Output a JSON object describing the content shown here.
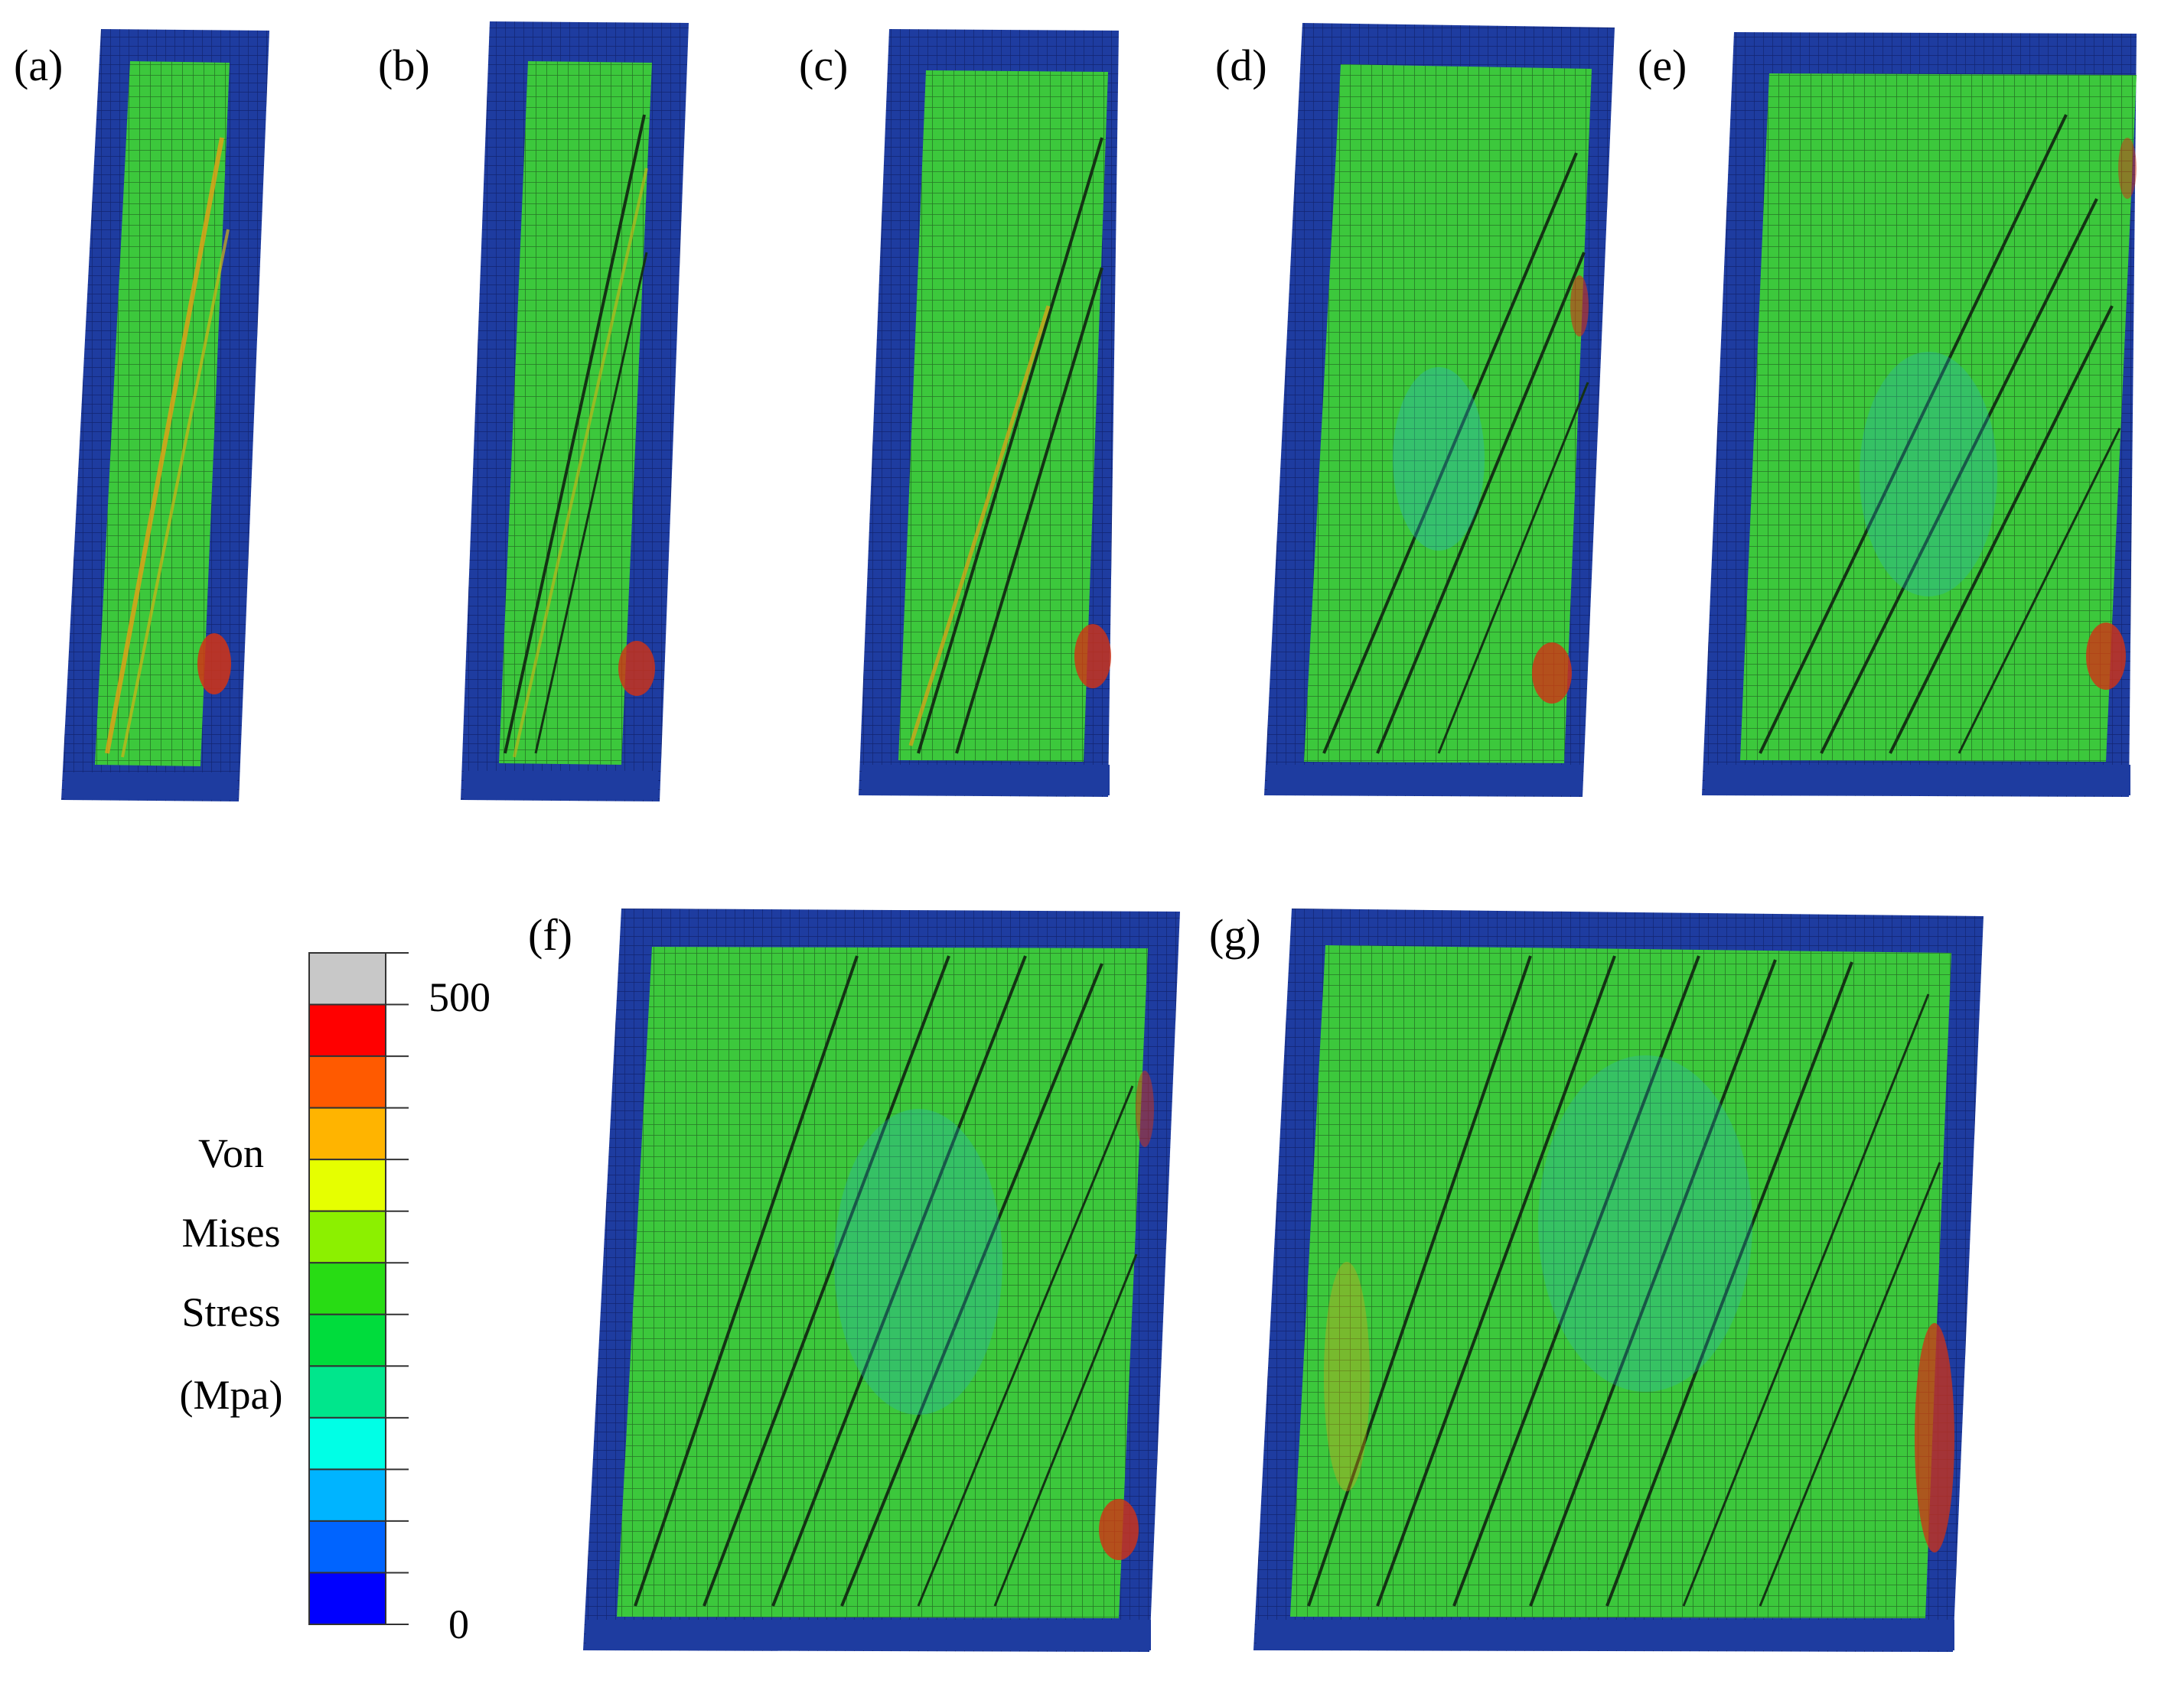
{
  "panels": [
    {
      "label": "(a)",
      "bays": 1,
      "tilt": 0.08,
      "hot": 0.55
    },
    {
      "label": "(b)",
      "bays": 1,
      "tilt": 0.07,
      "hot": 0.45
    },
    {
      "label": "(c)",
      "bays": 2,
      "tilt": 0.06,
      "hot": 0.55
    },
    {
      "label": "(d)",
      "bays": 2,
      "tilt": 0.06,
      "hot": 0.6
    },
    {
      "label": "(e)",
      "bays": 3,
      "tilt": 0.05,
      "hot": 0.45
    },
    {
      "label": "(f)",
      "bays": 4,
      "tilt": 0.04,
      "hot": 0.4
    },
    {
      "label": "(g)",
      "bays": 5,
      "tilt": 0.035,
      "hot": 0.6
    }
  ],
  "legend": {
    "title_lines": [
      "Von",
      "Mises",
      "Stress",
      "(Mpa)"
    ],
    "max_label": "500",
    "min_label": "0",
    "colors": [
      "#c8c8c8",
      "#ff0000",
      "#ff5a00",
      "#ffb400",
      "#e6ff00",
      "#8cf000",
      "#28dc14",
      "#00dc3c",
      "#00e68c",
      "#00ffe6",
      "#00b4ff",
      "#0064ff",
      "#0000ff"
    ]
  },
  "palette": {
    "frame_blue": "#1e3ca0",
    "frame_edge": "#0a1e78",
    "wall_green": "#3cc83c",
    "wall_light": "#5ad25a",
    "hot_red": "#d23214",
    "cyan": "#28b4c8",
    "mesh": "#1a3a1a"
  }
}
